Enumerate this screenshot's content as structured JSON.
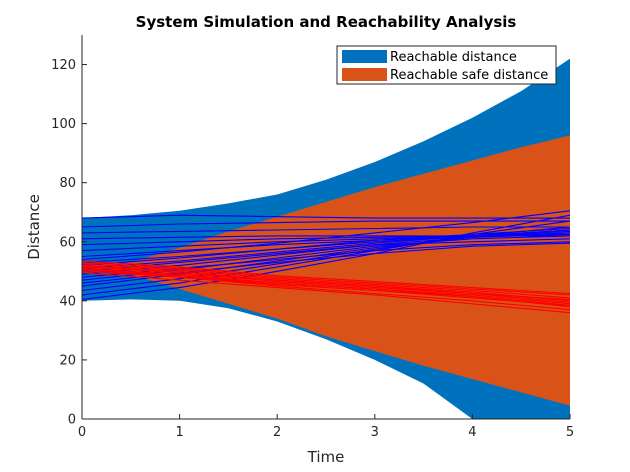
{
  "chart_data": {
    "type": "area",
    "title": "System Simulation and Reachability Analysis",
    "xlabel": "Time",
    "ylabel": "Distance",
    "xlim": [
      0,
      5
    ],
    "ylim": [
      0,
      130
    ],
    "xticks": [
      "0",
      "1",
      "2",
      "3",
      "4",
      "5"
    ],
    "yticks": [
      "0",
      "20",
      "40",
      "60",
      "80",
      "100",
      "120"
    ],
    "grid": false,
    "legend_placement": "top-right",
    "areas": [
      {
        "name": "Reachable distance",
        "color": "#0072bd",
        "x": [
          0,
          0.5,
          1,
          1.5,
          2,
          2.5,
          3,
          3.5,
          4,
          4.5,
          5
        ],
        "upper": [
          68,
          69,
          70.5,
          73,
          76,
          81,
          87,
          94,
          102,
          111,
          122
        ],
        "lower": [
          40,
          40.5,
          40,
          37.5,
          33,
          27,
          20,
          12,
          0,
          0,
          0
        ]
      },
      {
        "name": "Reachable safe distance",
        "color": "#d95319",
        "x": [
          0,
          0.5,
          1,
          1.5,
          2,
          2.5,
          3,
          3.5,
          4,
          4.5,
          5
        ],
        "upper": [
          52,
          53,
          58,
          63.5,
          68.5,
          73.5,
          78.5,
          83,
          87.5,
          92,
          96
        ],
        "lower": [
          51,
          49,
          44,
          39,
          34,
          28,
          23,
          18,
          13.5,
          9,
          4.5
        ]
      }
    ],
    "trajectory_groups": [
      {
        "color": "#0000ff",
        "x": [
          0,
          1,
          2,
          3,
          4,
          5
        ],
        "lines": [
          [
            68,
            69,
            68.5,
            68,
            68,
            68
          ],
          [
            65,
            66,
            66.5,
            67,
            67,
            67
          ],
          [
            63,
            63.5,
            64,
            64.5,
            65,
            65
          ],
          [
            61,
            61.5,
            62,
            62,
            62,
            62
          ],
          [
            59,
            60,
            61,
            61.5,
            62,
            62.5
          ],
          [
            57,
            58.5,
            60,
            61,
            62,
            63
          ],
          [
            55,
            57,
            59,
            60.5,
            62,
            63.5
          ],
          [
            53,
            55,
            57.5,
            60,
            62,
            64
          ],
          [
            51,
            53.5,
            56.5,
            59.5,
            62,
            64
          ],
          [
            49,
            52,
            55.5,
            59,
            61.5,
            62.5
          ],
          [
            47,
            50.5,
            54.5,
            58.5,
            61,
            62
          ],
          [
            45,
            49,
            53.5,
            58,
            61.5,
            63
          ],
          [
            43.5,
            47.5,
            52.5,
            57.5,
            62,
            65
          ],
          [
            42,
            46,
            51.5,
            57,
            62.5,
            67
          ],
          [
            40.5,
            44.5,
            50,
            56,
            63,
            69
          ],
          [
            54,
            56.5,
            59.5,
            63,
            66.5,
            70.5
          ],
          [
            52,
            54.5,
            57.5,
            60.5,
            62.5,
            64.5
          ],
          [
            50,
            53,
            56,
            59,
            60,
            61
          ],
          [
            48,
            51,
            54,
            57,
            59,
            60
          ],
          [
            46,
            49.5,
            53,
            56,
            58.5,
            59.5
          ]
        ]
      },
      {
        "color": "#ff0000",
        "x": [
          0,
          1,
          2,
          3,
          4,
          5
        ],
        "lines": [
          [
            52,
            50,
            47,
            45,
            43,
            40
          ],
          [
            51.5,
            49.5,
            46.5,
            44.5,
            42.5,
            39.5
          ],
          [
            51,
            49,
            46,
            44,
            42,
            39
          ],
          [
            50.5,
            48.5,
            45.5,
            43.5,
            41.5,
            38.5
          ],
          [
            52.5,
            50.5,
            47.5,
            45.5,
            43.5,
            41
          ],
          [
            53,
            51,
            48,
            46,
            44,
            42
          ],
          [
            50,
            48,
            45,
            42.5,
            40,
            37
          ],
          [
            49.5,
            47,
            44.5,
            42,
            39,
            36
          ],
          [
            53.5,
            51.5,
            48.5,
            46.5,
            44.5,
            42.5
          ],
          [
            51,
            48.5,
            46,
            44,
            41.5,
            38
          ],
          [
            52,
            49.5,
            47,
            45,
            42.5,
            40.5
          ],
          [
            50.5,
            48,
            45.5,
            43.5,
            41,
            38.5
          ]
        ]
      }
    ],
    "legend": [
      {
        "name": "Reachable distance",
        "color": "#0072bd"
      },
      {
        "name": "Reachable safe distance",
        "color": "#d95319"
      }
    ]
  }
}
